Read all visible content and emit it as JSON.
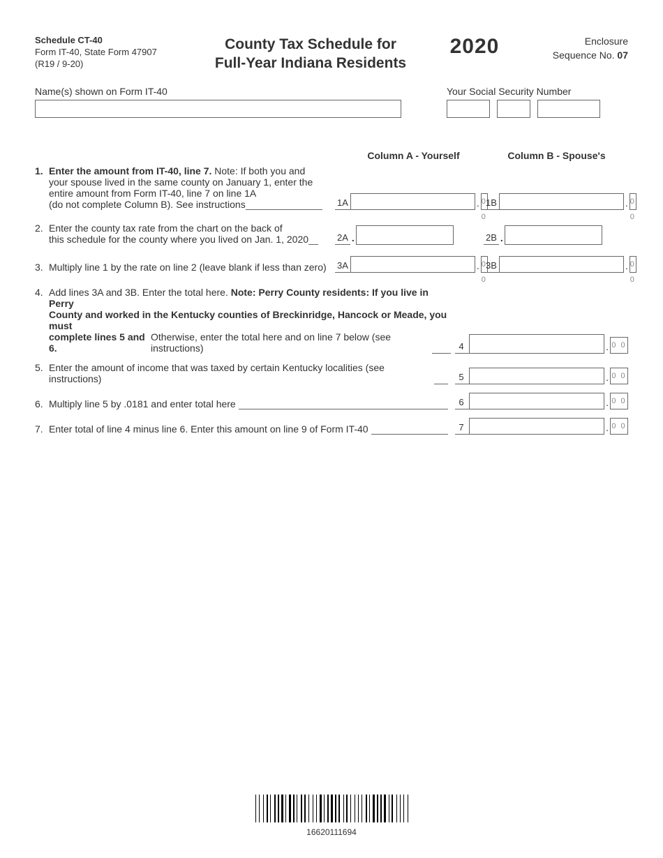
{
  "header": {
    "schedule": "Schedule CT-40",
    "form_line": "Form IT-40, State Form 47907",
    "revision": "(R19 / 9-20)",
    "title_line1": "County Tax Schedule for",
    "title_line2": "Full-Year Indiana Residents",
    "year": "2020",
    "enclosure": "Enclosure",
    "seq_label": "Sequence No. ",
    "seq_no": "07"
  },
  "identity": {
    "name_label": "Name(s) shown on Form IT-40",
    "ssn_label": "Your Social Security Number"
  },
  "columns": {
    "a": "Column A - Yourself",
    "b": "Column B - Spouse's"
  },
  "lines": {
    "l1": {
      "num": "1.",
      "lead": "Enter the amount from IT-40, line 7.",
      "rest1": " Note: If both you and",
      "rest2": "your spouse lived in the same county on January 1, enter the",
      "rest3": "entire amount from Form IT-40, line 7 on line 1A",
      "rest4": "(do not complete Column B). See instructions ",
      "labA": "1A",
      "labB": "1B",
      "cents": "0 0"
    },
    "l2": {
      "num": "2.",
      "text1": "Enter the county tax rate from the chart on the back of",
      "text2": "this schedule for the county where you lived on Jan. 1, 2020 ",
      "labA": "2A",
      "labB": "2B"
    },
    "l3": {
      "num": "3.",
      "text": "Multiply line 1 by the rate on line 2 (leave blank if less than zero)",
      "labA": "3A",
      "labB": "3B",
      "cents": "0 0"
    },
    "l4": {
      "num": "4.",
      "text1": "Add lines 3A and 3B.  Enter the total here. ",
      "bold1": "Note: Perry County residents: If you live in Perry",
      "bold2": "County and worked in the Kentucky counties of Breckinridge, Hancock or Meade, you must",
      "bold3": "complete lines 5 and 6.",
      "text2": " Otherwise, enter the total here and on line 7 below (see instructions)",
      "lab": "4",
      "cents": "0 0"
    },
    "l5": {
      "num": "5.",
      "text": "Enter the amount of income that was taxed by certain Kentucky localities (see instructions) ",
      "lab": "5",
      "cents": "0 0"
    },
    "l6": {
      "num": "6.",
      "text": "Multiply line 5 by .0181 and enter total here",
      "lab": "6",
      "cents": "0 0"
    },
    "l7": {
      "num": "7.",
      "text": "Enter total of line 4 minus line 6. Enter this amount on line 9 of Form IT-40 ",
      "lab": "7",
      "cents": "0 0"
    }
  },
  "barcode": {
    "number": "16620111694",
    "widths": [
      1,
      2,
      1,
      3,
      1,
      2,
      2,
      1,
      1,
      3,
      2,
      1,
      2,
      1,
      3,
      1,
      1,
      2,
      3,
      1,
      2,
      1,
      1,
      3,
      2,
      1,
      2,
      2,
      1,
      3,
      1,
      2,
      1,
      2,
      3,
      1,
      1,
      2,
      2,
      1,
      3,
      1,
      2,
      1,
      2,
      3,
      1,
      1,
      2,
      2,
      1,
      3,
      1,
      2,
      1,
      2,
      1,
      3,
      2,
      1,
      1,
      2,
      3,
      1,
      2,
      1,
      2,
      1,
      3,
      2,
      1,
      1,
      2,
      3,
      1,
      2,
      1,
      2,
      1,
      3,
      1
    ]
  },
  "colors": {
    "text": "#333333",
    "border": "#666666",
    "cents": "#888888",
    "background": "#ffffff"
  }
}
